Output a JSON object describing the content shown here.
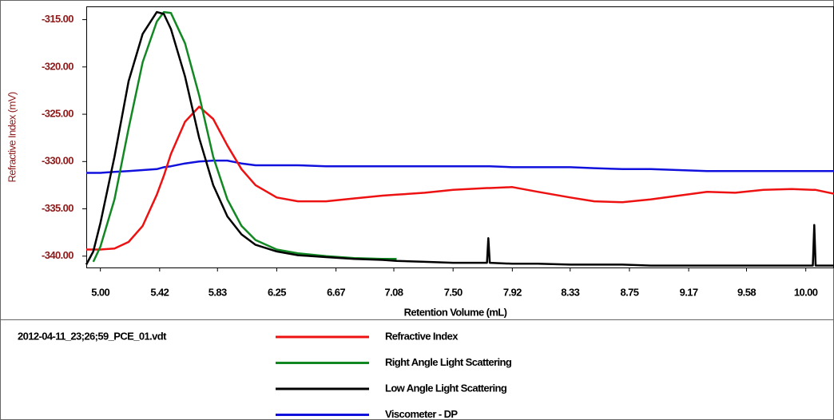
{
  "chart_data": {
    "type": "line",
    "y_label": "Refractive Index (mV)",
    "x_label": "Retention Volume (mL)",
    "legend_title": "2012-04-11_23;26;59_PCE_01.vdt",
    "xlim": [
      4.9,
      10.2
    ],
    "ylim": [
      -341.2,
      -313.6
    ],
    "xticks": [
      {
        "value": 5,
        "label": "5.00"
      },
      {
        "value": 5.42,
        "label": "5.42"
      },
      {
        "value": 5.83,
        "label": "5.83"
      },
      {
        "value": 6.25,
        "label": "6.25"
      },
      {
        "value": 6.67,
        "label": "6.67"
      },
      {
        "value": 7.08,
        "label": "7.08"
      },
      {
        "value": 7.5,
        "label": "7.50"
      },
      {
        "value": 7.92,
        "label": "7.92"
      },
      {
        "value": 8.33,
        "label": "8.33"
      },
      {
        "value": 8.75,
        "label": "8.75"
      },
      {
        "value": 9.17,
        "label": "9.17"
      },
      {
        "value": 9.58,
        "label": "9.58"
      },
      {
        "value": 10,
        "label": "10.00"
      }
    ],
    "yticks": [
      {
        "value": -315,
        "label": "-315.00"
      },
      {
        "value": -320,
        "label": "-320.00"
      },
      {
        "value": -325,
        "label": "-325.00"
      },
      {
        "value": -330,
        "label": "-330.00"
      },
      {
        "value": -335,
        "label": "-335.00"
      },
      {
        "value": -340,
        "label": "-340.00"
      }
    ],
    "x": [
      4.9,
      4.95,
      5.0,
      5.1,
      5.2,
      5.3,
      5.4,
      5.45,
      5.5,
      5.6,
      5.7,
      5.8,
      5.9,
      6.0,
      6.1,
      6.25,
      6.4,
      6.6,
      6.8,
      7.0,
      7.1,
      7.3,
      7.5,
      7.74,
      7.75,
      7.76,
      7.92,
      8.1,
      8.33,
      8.5,
      8.7,
      8.9,
      9.1,
      9.3,
      9.5,
      9.7,
      9.9,
      10.05,
      10.06,
      10.07,
      10.2
    ],
    "series": [
      {
        "name": "Refractive Index",
        "color": "#ee1111",
        "values": [
          -339.3,
          -339.3,
          -339.3,
          -339.2,
          -338.5,
          -336.8,
          -333.5,
          -331.5,
          -329.2,
          -325.8,
          -324.2,
          -325.5,
          -328.3,
          -330.8,
          -332.5,
          -333.8,
          -334.2,
          -334.2,
          -333.9,
          -333.6,
          -333.5,
          -333.3,
          -333.0,
          -332.8,
          -332.8,
          -332.8,
          -332.7,
          -333.2,
          -333.8,
          -334.2,
          -334.3,
          -334.0,
          -333.6,
          -333.2,
          -333.3,
          -333.0,
          -332.9,
          -333.0,
          -333.0,
          -333.0,
          -333.4
        ]
      },
      {
        "name": "Right Angle Light Scattering",
        "color": "#118822",
        "values": [
          null,
          -340.6,
          -339.0,
          -334.0,
          -326.5,
          -319.5,
          -315.2,
          -314.2,
          -314.3,
          -317.5,
          -323.0,
          -329.5,
          -334.0,
          -336.8,
          -338.3,
          -339.3,
          -339.7,
          -340.0,
          -340.2,
          -340.3,
          -340.3,
          null,
          null,
          null,
          null,
          null,
          null,
          null,
          null,
          null,
          null,
          null,
          null,
          null,
          null,
          null,
          null,
          null,
          null,
          null,
          null
        ]
      },
      {
        "name": "Low Angle Light Scattering",
        "color": "#000000",
        "values": [
          -340.9,
          -339.5,
          -336.5,
          -329.5,
          -321.5,
          -316.5,
          -314.2,
          -314.4,
          -316.0,
          -321.0,
          -327.5,
          -332.5,
          -335.8,
          -337.7,
          -338.8,
          -339.5,
          -339.9,
          -340.1,
          -340.3,
          -340.4,
          -340.5,
          -340.6,
          -340.7,
          -340.7,
          -338.1,
          -340.7,
          -340.8,
          -340.8,
          -340.9,
          -340.9,
          -340.9,
          -341.0,
          -341.0,
          -341.0,
          -341.0,
          -341.0,
          -341.0,
          -341.0,
          -336.7,
          -341.0,
          -341.0
        ]
      },
      {
        "name": "Viscometer - DP",
        "color": "#1111dd",
        "values": [
          -331.2,
          -331.2,
          -331.2,
          -331.1,
          -331.0,
          -330.9,
          -330.8,
          -330.6,
          -330.5,
          -330.2,
          -330.0,
          -329.9,
          -329.9,
          -330.2,
          -330.4,
          -330.4,
          -330.4,
          -330.5,
          -330.5,
          -330.5,
          -330.5,
          -330.5,
          -330.5,
          -330.5,
          -330.5,
          -330.5,
          -330.6,
          -330.6,
          -330.6,
          -330.7,
          -330.8,
          -330.8,
          -330.9,
          -331.0,
          -331.0,
          -331.0,
          -331.0,
          -331.0,
          -331.0,
          -331.0,
          -331.0
        ]
      }
    ]
  }
}
